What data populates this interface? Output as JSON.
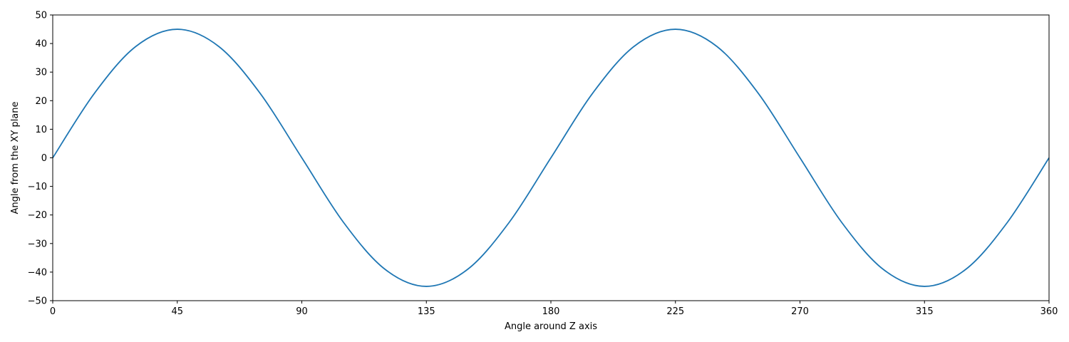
{
  "chart_data": {
    "type": "line",
    "title": "",
    "xlabel": "Angle around Z axis",
    "ylabel": "Angle from the XY plane",
    "xlim": [
      0,
      360
    ],
    "ylim": [
      -50,
      50
    ],
    "xticks": [
      0,
      45,
      90,
      135,
      180,
      225,
      270,
      315,
      360
    ],
    "yticks": [
      -50,
      -40,
      -30,
      -20,
      -10,
      0,
      10,
      20,
      30,
      40,
      50
    ],
    "xtick_labels": [
      "0",
      "45",
      "90",
      "135",
      "180",
      "225",
      "270",
      "315",
      "360"
    ],
    "ytick_labels": [
      "−50",
      "−40",
      "−30",
      "−20",
      "−10",
      "0",
      "10",
      "20",
      "30",
      "40",
      "50"
    ],
    "grid": false,
    "series": [
      {
        "color": "#1f77b4",
        "x": [
          0,
          15,
          30,
          45,
          60,
          75,
          90,
          105,
          120,
          135,
          150,
          165,
          180,
          195,
          210,
          225,
          240,
          255,
          270,
          285,
          300,
          315,
          330,
          345,
          360
        ],
        "y": [
          0,
          22.5,
          38.97,
          45,
          38.97,
          22.5,
          0,
          -22.5,
          -38.97,
          -45,
          -38.97,
          -22.5,
          0,
          22.5,
          38.97,
          45,
          38.97,
          22.5,
          0,
          -22.5,
          -38.97,
          -45,
          -38.97,
          -22.5,
          0
        ]
      }
    ]
  }
}
